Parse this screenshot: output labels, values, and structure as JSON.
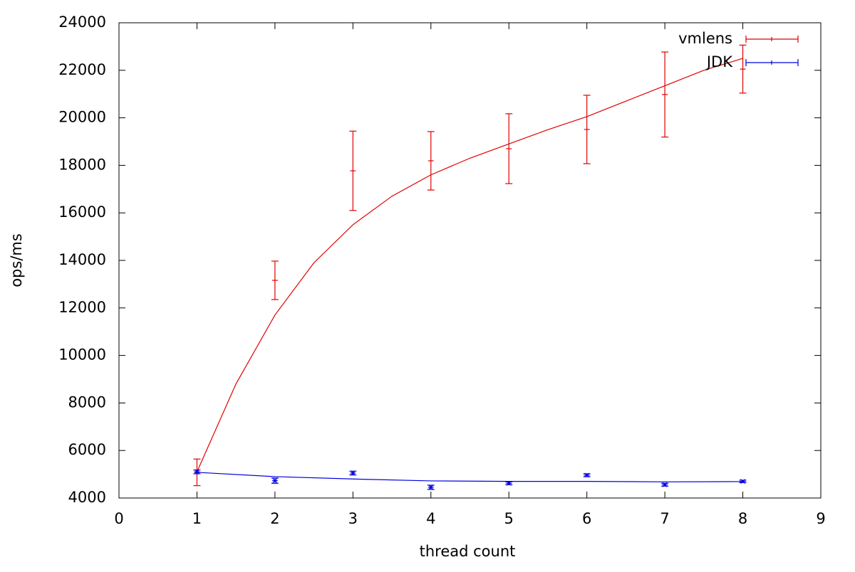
{
  "chart_data": {
    "type": "errorline",
    "xlabel": "thread count",
    "ylabel": "ops/ms",
    "xlim": [
      0,
      9
    ],
    "xticks": [
      0,
      1,
      2,
      3,
      4,
      5,
      6,
      7,
      8,
      9
    ],
    "ylim": [
      4000,
      24000
    ],
    "yticks": [
      4000,
      6000,
      8000,
      10000,
      12000,
      14000,
      16000,
      18000,
      20000,
      22000,
      24000
    ],
    "legend": "upper-right",
    "series": [
      {
        "name": "vmlens",
        "color": "#e00000",
        "x": [
          1,
          2,
          3,
          4,
          5,
          6,
          7,
          8
        ],
        "values": [
          5080,
          13160,
          17770,
          18190,
          18700,
          19510,
          20980,
          22050
        ],
        "errors": [
          560,
          810,
          1670,
          1230,
          1470,
          1440,
          1790,
          1010
        ],
        "fit_x": [
          1,
          1.5,
          2,
          2.5,
          3,
          3.5,
          4,
          4.5,
          5,
          5.5,
          6,
          6.5,
          7,
          7.5,
          8
        ],
        "fit_values": [
          5100,
          8800,
          11700,
          13900,
          15500,
          16700,
          17600,
          18300,
          18900,
          19500,
          20050,
          20700,
          21350,
          22000,
          22500
        ]
      },
      {
        "name": "JDK",
        "color": "#0000e0",
        "x": [
          1,
          2,
          3,
          4,
          5,
          6,
          7,
          8
        ],
        "values": [
          5100,
          4730,
          5050,
          4450,
          4620,
          4960,
          4560,
          4700
        ],
        "errors": [
          80,
          110,
          80,
          90,
          60,
          60,
          60,
          50
        ],
        "fit_x": [
          1,
          2,
          3,
          4,
          5,
          6,
          7,
          8
        ],
        "fit_values": [
          5080,
          4900,
          4800,
          4720,
          4700,
          4700,
          4680,
          4690
        ]
      }
    ]
  }
}
